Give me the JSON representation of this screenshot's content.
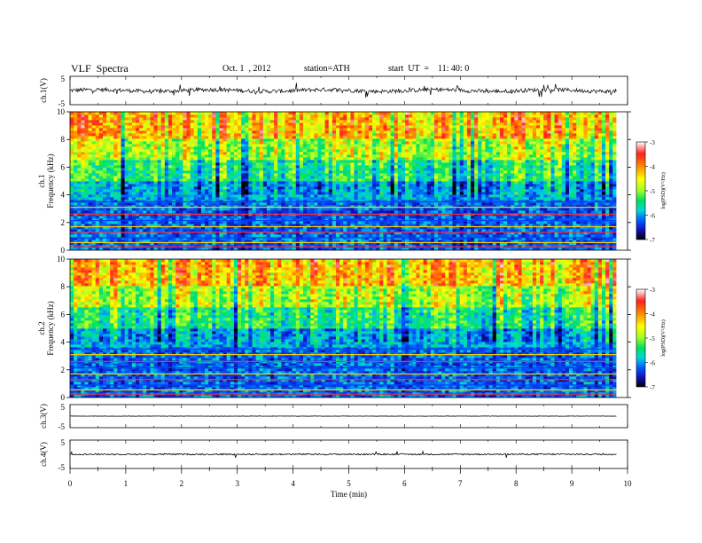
{
  "header": {
    "title": "VLF  Spectra",
    "date": "Oct. 1  , 2012",
    "station": "station=ATH",
    "start": "start  UT  =    11: 40: 0"
  },
  "colorbar": {
    "label": "log(PSD)(V²/Hz)",
    "ticks": [
      "-3",
      "-4",
      "-5",
      "-6",
      "-7"
    ],
    "colors": [
      "#ffffff",
      "#ff2020",
      "#ff8c00",
      "#ffff00",
      "#9cff2c",
      "#00e060",
      "#00d8d8",
      "#0060ff",
      "#1010c0",
      "#000000"
    ]
  },
  "chart_data": [
    {
      "type": "line",
      "panel": "ch1-waveform",
      "ylabel": "ch.1(V)",
      "yticks": [
        "5",
        "-5"
      ],
      "ylim": [
        -5,
        5
      ],
      "xlim": [
        0,
        10
      ],
      "description_values": "noisy waveform around ~0 V, spikes to about ±2 V, data from 0 to ~9.8 min"
    },
    {
      "type": "heatmap",
      "panel": "ch1-spectrogram",
      "ylabel": "ch.1\nFrequency  (kHz)",
      "ylabel_lines": [
        "ch.1",
        "Frequency  (kHz)"
      ],
      "yticks": [
        "0",
        "2",
        "4",
        "6",
        "8",
        "10"
      ],
      "ylim": [
        0,
        10
      ],
      "xlim": [
        0,
        10
      ],
      "bands_kHz": [
        {
          "from": 0,
          "to": 3.5,
          "logPSD": -6.0
        },
        {
          "from": 3.5,
          "to": 5.0,
          "logPSD": -5.8
        },
        {
          "from": 5.0,
          "to": 6.5,
          "logPSD": -5.2
        },
        {
          "from": 6.5,
          "to": 8.0,
          "logPSD": -4.6
        },
        {
          "from": 8.0,
          "to": 10.0,
          "logPSD": -4.0
        }
      ]
    },
    {
      "type": "heatmap",
      "panel": "ch2-spectrogram",
      "ylabel_lines": [
        "ch.2",
        "Frequency  (kHz)"
      ],
      "yticks": [
        "0",
        "2",
        "4",
        "6",
        "8",
        "10"
      ],
      "ylim": [
        0,
        10
      ],
      "xlim": [
        0,
        10
      ],
      "bands_kHz": [
        {
          "from": 0,
          "to": 3.5,
          "logPSD": -6.0
        },
        {
          "from": 3.5,
          "to": 5.0,
          "logPSD": -5.8
        },
        {
          "from": 5.0,
          "to": 6.5,
          "logPSD": -5.2
        },
        {
          "from": 6.5,
          "to": 8.0,
          "logPSD": -4.6
        },
        {
          "from": 8.0,
          "to": 10.0,
          "logPSD": -4.0
        }
      ]
    },
    {
      "type": "line",
      "panel": "ch3-waveform",
      "ylabel": "ch.3(V)",
      "yticks": [
        "5",
        "-5"
      ],
      "ylim": [
        -5,
        5
      ],
      "xlim": [
        0,
        10
      ],
      "level_V": 0
    },
    {
      "type": "line",
      "panel": "ch4-waveform",
      "ylabel": "ch.4(V)",
      "yticks": [
        "5",
        "-5"
      ],
      "ylim": [
        -5,
        5
      ],
      "xlim": [
        0,
        10
      ],
      "level_V": 0
    }
  ],
  "xaxis": {
    "label": "Time  (min)",
    "ticks": [
      "0",
      "1",
      "2",
      "3",
      "4",
      "5",
      "6",
      "7",
      "8",
      "9",
      "10"
    ],
    "data_end_min": 9.8
  }
}
